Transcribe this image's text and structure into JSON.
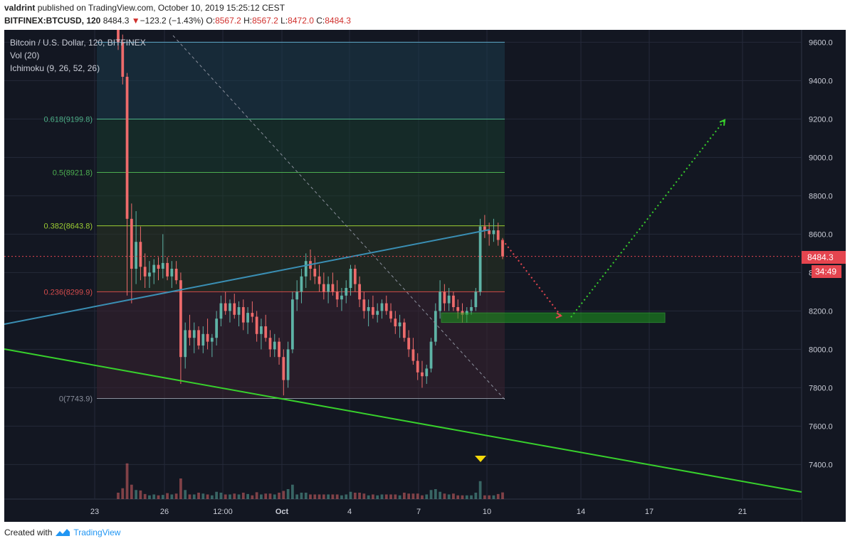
{
  "header": {
    "author": "valdrint",
    "published_text": "published on TradingView.com, October 10, 2019 15:25:12 CEST",
    "symbol": "BITFINEX:BTCUSD, 120",
    "last": "8484.3",
    "change_arrow": "▼",
    "change": "−123.2 (−1.43%)",
    "o_label": "O:",
    "o_value": "8567.2",
    "h_label": "H:",
    "h_value": "8567.2",
    "l_label": "L:",
    "l_value": "8472.0",
    "c_label": "C:",
    "c_value": "8484.3"
  },
  "legend": {
    "title": "Bitcoin / U.S. Dollar, 120, BITFINEX",
    "vol": "Vol (20)",
    "ichimoku": "Ichimoku (9, 26, 52, 26)"
  },
  "price_badge": {
    "price": "8484.3",
    "countdown": "34:49"
  },
  "footer": {
    "created_with": "Created with",
    "brand": "TradingView",
    "brand_icon": "tradingview-logo-icon"
  },
  "colors": {
    "background": "#131722",
    "grid": "#242a3a",
    "candle_up": "#5eb3a6",
    "candle_down": "#ee6b6b",
    "axis_text": "#c9ccd6",
    "price_badge": "#e5454f",
    "support_zone": "#1d9a1d",
    "trendline_green": "#38d12c",
    "trendline_blue": "#3a8fb4"
  },
  "chart_data": {
    "type": "candlestick",
    "title": "Bitcoin / U.S. Dollar, 120, BITFINEX",
    "x_ticks": [
      "23",
      "26",
      "12:00",
      "Oct",
      "4",
      "7",
      "10",
      "14",
      "17",
      "21"
    ],
    "y_ticks": [
      "7400.0",
      "7600.0",
      "7800.0",
      "8000.0",
      "8200.0",
      "8400.0",
      "8600.0",
      "8800.0",
      "9000.0",
      "9200.0",
      "9400.0",
      "9600.0"
    ],
    "ylim": [
      7220,
      9680
    ],
    "current_price": 8484.3,
    "fibonacci": [
      {
        "label": "0.618(9199.8)",
        "level": 9199.8,
        "color": "#4caf87"
      },
      {
        "label": "0.5(8921.8)",
        "level": 8921.8,
        "color": "#4caf50"
      },
      {
        "label": "0.382(8643.8)",
        "level": 8643.8,
        "color": "#9ccc33"
      },
      {
        "label": "0.236(8299.9)",
        "level": 8299.9,
        "color": "#d24b4b"
      },
      {
        "label": "0(7743.9)",
        "level": 7743.9,
        "color": "#8a8f9c"
      }
    ],
    "fib_top_partial_level": 9600,
    "support_zone": {
      "from": "7 Oct (late)",
      "to": "17 Oct (late)",
      "low": 8140,
      "high": 8190
    },
    "projection": [
      {
        "point": "10 Oct",
        "price": 8570
      },
      {
        "point": "13 Oct",
        "price": 8175
      },
      {
        "point": "20 Oct",
        "price": 9195
      }
    ],
    "signal_marker": "10 Oct",
    "candles_ohlc": [
      [
        9680,
        9695,
        9560,
        9600
      ],
      [
        9600,
        9640,
        9380,
        9420
      ],
      [
        9420,
        9440,
        8280,
        8680
      ],
      [
        8680,
        8760,
        8240,
        8420
      ],
      [
        8420,
        8720,
        8340,
        8560
      ],
      [
        8560,
        8640,
        8360,
        8430
      ],
      [
        8430,
        8500,
        8320,
        8380
      ],
      [
        8380,
        8460,
        8320,
        8400
      ],
      [
        8400,
        8470,
        8340,
        8440
      ],
      [
        8440,
        8480,
        8360,
        8420
      ],
      [
        8420,
        8600,
        8370,
        8450
      ],
      [
        8450,
        8480,
        8360,
        8380
      ],
      [
        8380,
        8460,
        8320,
        8420
      ],
      [
        8420,
        8460,
        8340,
        8360
      ],
      [
        8360,
        8400,
        7820,
        7960
      ],
      [
        7960,
        8140,
        7900,
        8100
      ],
      [
        8100,
        8180,
        8020,
        8060
      ],
      [
        8060,
        8140,
        7980,
        8100
      ],
      [
        8100,
        8120,
        8000,
        8020
      ],
      [
        8020,
        8120,
        7980,
        8080
      ],
      [
        8080,
        8160,
        8000,
        8040
      ],
      [
        8040,
        8080,
        7960,
        8060
      ],
      [
        8060,
        8200,
        8020,
        8160
      ],
      [
        8160,
        8280,
        8120,
        8240
      ],
      [
        8240,
        8300,
        8180,
        8200
      ],
      [
        8200,
        8260,
        8140,
        8240
      ],
      [
        8240,
        8290,
        8160,
        8180
      ],
      [
        8180,
        8250,
        8120,
        8220
      ],
      [
        8220,
        8260,
        8100,
        8140
      ],
      [
        8140,
        8220,
        8080,
        8190
      ],
      [
        8190,
        8250,
        8140,
        8170
      ],
      [
        8170,
        8200,
        8040,
        8080
      ],
      [
        8080,
        8160,
        8000,
        8120
      ],
      [
        8120,
        8180,
        8040,
        8060
      ],
      [
        8060,
        8100,
        7960,
        8000
      ],
      [
        8000,
        8080,
        7960,
        8040
      ],
      [
        8040,
        8060,
        7920,
        7960
      ],
      [
        7960,
        8000,
        7760,
        7840
      ],
      [
        7840,
        8040,
        7800,
        8000
      ],
      [
        8000,
        8300,
        7980,
        8260
      ],
      [
        8260,
        8360,
        8200,
        8300
      ],
      [
        8300,
        8420,
        8240,
        8380
      ],
      [
        8380,
        8500,
        8320,
        8460
      ],
      [
        8460,
        8520,
        8360,
        8420
      ],
      [
        8420,
        8480,
        8340,
        8380
      ],
      [
        8380,
        8440,
        8300,
        8340
      ],
      [
        8340,
        8400,
        8260,
        8300
      ],
      [
        8300,
        8380,
        8240,
        8340
      ],
      [
        8340,
        8400,
        8280,
        8300
      ],
      [
        8300,
        8360,
        8220,
        8260
      ],
      [
        8260,
        8320,
        8200,
        8280
      ],
      [
        8280,
        8360,
        8240,
        8320
      ],
      [
        8320,
        8440,
        8280,
        8420
      ],
      [
        8420,
        8440,
        8300,
        8340
      ],
      [
        8340,
        8380,
        8220,
        8260
      ],
      [
        8260,
        8300,
        8160,
        8200
      ],
      [
        8200,
        8260,
        8120,
        8220
      ],
      [
        8220,
        8280,
        8160,
        8180
      ],
      [
        8180,
        8240,
        8140,
        8200
      ],
      [
        8200,
        8260,
        8160,
        8240
      ],
      [
        8240,
        8280,
        8180,
        8200
      ],
      [
        8200,
        8240,
        8140,
        8160
      ],
      [
        8160,
        8200,
        8080,
        8120
      ],
      [
        8120,
        8180,
        8060,
        8140
      ],
      [
        8140,
        8160,
        8040,
        8060
      ],
      [
        8060,
        8100,
        7960,
        8000
      ],
      [
        8000,
        8060,
        7920,
        7940
      ],
      [
        7940,
        7980,
        7840,
        7880
      ],
      [
        7880,
        7940,
        7800,
        7860
      ],
      [
        7860,
        7920,
        7820,
        7900
      ],
      [
        7900,
        8060,
        7880,
        8040
      ],
      [
        8040,
        8240,
        8020,
        8200
      ],
      [
        8200,
        8360,
        8160,
        8300
      ],
      [
        8300,
        8340,
        8200,
        8240
      ],
      [
        8240,
        8320,
        8200,
        8280
      ],
      [
        8280,
        8300,
        8200,
        8220
      ],
      [
        8220,
        8260,
        8160,
        8200
      ],
      [
        8200,
        8240,
        8140,
        8180
      ],
      [
        8180,
        8220,
        8140,
        8200
      ],
      [
        8200,
        8260,
        8180,
        8220
      ],
      [
        8220,
        8320,
        8200,
        8300
      ],
      [
        8300,
        8680,
        8280,
        8640
      ],
      [
        8640,
        8700,
        8580,
        8620
      ],
      [
        8620,
        8660,
        8540,
        8600
      ],
      [
        8600,
        8680,
        8560,
        8620
      ],
      [
        8620,
        8660,
        8540,
        8570
      ],
      [
        8570,
        8580,
        8470,
        8484
      ]
    ]
  }
}
